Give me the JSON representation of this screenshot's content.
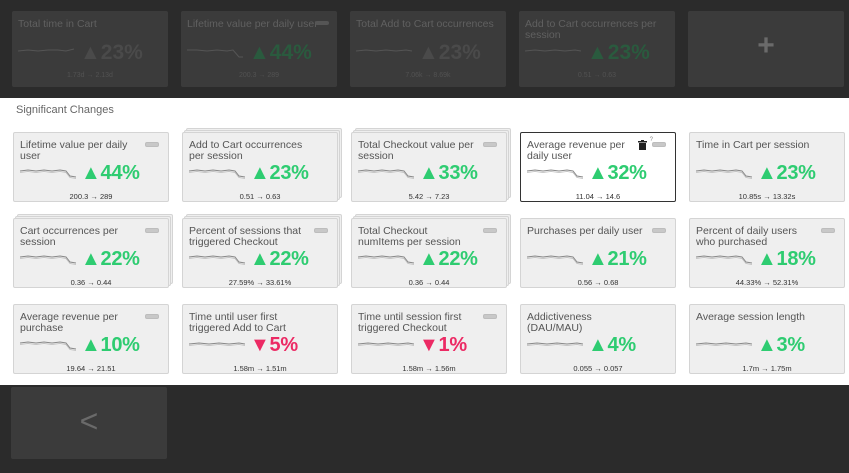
{
  "top_cards": [
    {
      "name": "Total time in Cart",
      "pct": "23%",
      "range": "1.73d → 2.13d",
      "highlight": false
    },
    {
      "name": "Lifetime value per daily user",
      "pct": "44%",
      "range": "200.3 → 289",
      "highlight": true
    },
    {
      "name": "Total Add to Cart occurrences",
      "pct": "23%",
      "range": "7.06k → 8.69k",
      "highlight": false
    },
    {
      "name": "Add to Cart occurrences per session",
      "pct": "23%",
      "range": "0.51 → 0.63",
      "highlight": true
    }
  ],
  "add_label": "+",
  "section_title": "Significant Changes",
  "cards": [
    {
      "name": "Lifetime value per daily user",
      "pct": "44%",
      "dir": "up",
      "range": "200.3 → 289",
      "stack": false,
      "sel": false
    },
    {
      "name": "Add to Cart occurrences per session",
      "pct": "23%",
      "dir": "up",
      "range": "0.51 → 0.63",
      "stack": true,
      "sel": false
    },
    {
      "name": "Total Checkout value per session",
      "pct": "33%",
      "dir": "up",
      "range": "5.42 → 7.23",
      "stack": true,
      "sel": false
    },
    {
      "name": "Average revenue per daily user",
      "pct": "32%",
      "dir": "up",
      "range": "11.04 → 14.6",
      "stack": false,
      "sel": true
    },
    {
      "name": "Time in Cart per session",
      "pct": "23%",
      "dir": "up",
      "range": "10.85s → 13.32s",
      "stack": false,
      "sel": false
    },
    {
      "name": "Cart occurrences per session",
      "pct": "22%",
      "dir": "up",
      "range": "0.36 → 0.44",
      "stack": true,
      "sel": false
    },
    {
      "name": "Percent of sessions that triggered Checkout",
      "pct": "22%",
      "dir": "up",
      "range": "27.59% → 33.61%",
      "stack": true,
      "sel": false
    },
    {
      "name": "Total Checkout numItems per session",
      "pct": "22%",
      "dir": "up",
      "range": "0.36 → 0.44",
      "stack": true,
      "sel": false
    },
    {
      "name": "Purchases per daily user",
      "pct": "21%",
      "dir": "up",
      "range": "0.56 → 0.68",
      "stack": false,
      "sel": false
    },
    {
      "name": "Percent of daily users who purchased",
      "pct": "18%",
      "dir": "up",
      "range": "44.33% → 52.31%",
      "stack": false,
      "sel": false
    },
    {
      "name": "Average revenue per purchase",
      "pct": "10%",
      "dir": "up",
      "range": "19.64 → 21.51",
      "stack": false,
      "sel": false
    },
    {
      "name": "Time until user first triggered Add to Cart",
      "pct": "5%",
      "dir": "down",
      "range": "1.58m → 1.51m",
      "stack": false,
      "sel": false
    },
    {
      "name": "Time until session first triggered Checkout",
      "pct": "1%",
      "dir": "down",
      "range": "1.58m → 1.56m",
      "stack": false,
      "sel": false
    },
    {
      "name": "Addictiveness (DAU/MAU)",
      "pct": "4%",
      "dir": "up",
      "range": "0.055 → 0.057",
      "stack": false,
      "sel": false
    },
    {
      "name": "Average session length",
      "pct": "3%",
      "dir": "up",
      "range": "1.7m → 1.75m",
      "stack": false,
      "sel": false
    }
  ],
  "back_label": "<",
  "colors": {
    "up": "#2ecc71",
    "down": "#ec2a64"
  },
  "icons": {
    "arrow_up": "▲",
    "arrow_down": "▼",
    "trash": "trash-icon",
    "toggle": "toggle-icon"
  }
}
